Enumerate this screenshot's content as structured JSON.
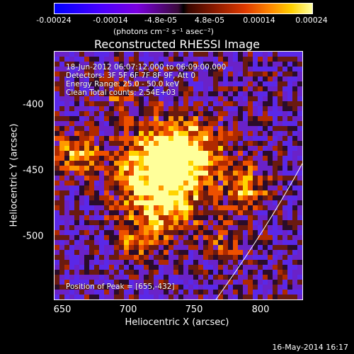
{
  "colorbar": {
    "ticks": [
      "-0.00024",
      "-0.00014",
      "-4.8e-05",
      "4.8e-05",
      "0.00014",
      "0.00024"
    ],
    "unit": "(photons cm⁻² s⁻¹ asec⁻²)"
  },
  "title": "Reconstructed RHESSI Image",
  "annotations": {
    "time": "18-Jun-2012 06:07:12.000 to 06:09:00.000",
    "detectors": "Detectors: 3F 5F 6F 7F 8F 9F, Att 0",
    "energy": "Energy Range: 25.0 - 50.0 keV",
    "clean": "Clean    Total counts: 2.54E+03",
    "peak": "Position of Peak = [655,-432]"
  },
  "axes": {
    "xlabel": "Heliocentric X (arcsec)",
    "ylabel": "Heliocentric Y (arcsec)",
    "xticks": [
      "650",
      "700",
      "750",
      "800"
    ],
    "yticks": [
      "-400",
      "-450",
      "-500"
    ]
  },
  "footer": "16-May-2014 16:17"
}
